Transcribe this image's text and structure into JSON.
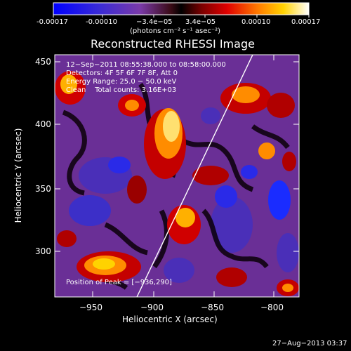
{
  "colorbar": {
    "ticks": [
      "-0.00017",
      "-0.00010",
      "−3.4e−05",
      "3.4e−05",
      "0.00010",
      "0.00017"
    ],
    "unit_line": "(photons cm⁻² s⁻¹ asec⁻²)"
  },
  "title": "Reconstructed RHESSI Image",
  "axes": {
    "xlabel": "Heliocentric X (arcsec)",
    "ylabel": "Heliocentric Y (arcsec)",
    "xticks": [
      "−950",
      "−900",
      "−850",
      "−800"
    ],
    "yticks": [
      "450",
      "400",
      "350",
      "300"
    ]
  },
  "overlay": {
    "line1": "12−Sep−2011 08:55:38.000 to 08:58:00.000",
    "line2": "Detectors: 4F 5F 6F 7F 8F, Att 0",
    "line3": "Energy Range: 25.0 − 50.0 keV",
    "line4": "Clean    Total counts: 3.16E+03",
    "peak": "Position of Peak = [−936,290]"
  },
  "footer": "27−Aug−2013 03:37",
  "colors": {
    "background": "#000000",
    "text": "#ffffff",
    "limb_line": "#ffffff"
  }
}
